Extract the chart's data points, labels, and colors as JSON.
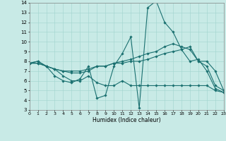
{
  "xlabel": "Humidex (Indice chaleur)",
  "xlim": [
    0,
    23
  ],
  "ylim": [
    3,
    14
  ],
  "xticks": [
    0,
    1,
    2,
    3,
    4,
    5,
    6,
    7,
    8,
    9,
    10,
    11,
    12,
    13,
    14,
    15,
    16,
    17,
    18,
    19,
    20,
    21,
    22,
    23
  ],
  "yticks": [
    3,
    4,
    5,
    6,
    7,
    8,
    9,
    10,
    11,
    12,
    13,
    14
  ],
  "bg_color": "#c8eae6",
  "line_color": "#1a7070",
  "grid_color": "#a0d4ce",
  "series1": [
    [
      0,
      7.8
    ],
    [
      1,
      8.0
    ],
    [
      2,
      7.5
    ],
    [
      3,
      6.5
    ],
    [
      4,
      6.0
    ],
    [
      5,
      5.8
    ],
    [
      6,
      6.2
    ],
    [
      7,
      7.5
    ],
    [
      8,
      4.2
    ],
    [
      9,
      4.5
    ],
    [
      10,
      7.5
    ],
    [
      11,
      8.8
    ],
    [
      12,
      10.5
    ],
    [
      13,
      3.2
    ],
    [
      14,
      13.5
    ],
    [
      15,
      14.2
    ],
    [
      16,
      12.0
    ],
    [
      17,
      11.0
    ],
    [
      18,
      9.2
    ],
    [
      19,
      8.0
    ],
    [
      20,
      8.2
    ],
    [
      21,
      7.0
    ],
    [
      22,
      5.2
    ],
    [
      23,
      4.8
    ]
  ],
  "series2": [
    [
      0,
      7.8
    ],
    [
      1,
      8.0
    ],
    [
      2,
      7.5
    ],
    [
      3,
      7.2
    ],
    [
      4,
      7.0
    ],
    [
      5,
      7.0
    ],
    [
      6,
      7.0
    ],
    [
      7,
      7.2
    ],
    [
      8,
      7.5
    ],
    [
      9,
      7.5
    ],
    [
      10,
      7.8
    ],
    [
      11,
      8.0
    ],
    [
      12,
      8.2
    ],
    [
      13,
      8.5
    ],
    [
      14,
      8.8
    ],
    [
      15,
      9.0
    ],
    [
      16,
      9.5
    ],
    [
      17,
      9.8
    ],
    [
      18,
      9.5
    ],
    [
      19,
      9.2
    ],
    [
      20,
      8.0
    ],
    [
      21,
      8.0
    ],
    [
      22,
      7.0
    ],
    [
      23,
      5.0
    ]
  ],
  "series3": [
    [
      0,
      7.8
    ],
    [
      1,
      7.8
    ],
    [
      2,
      7.5
    ],
    [
      3,
      7.2
    ],
    [
      4,
      7.0
    ],
    [
      5,
      6.8
    ],
    [
      6,
      6.8
    ],
    [
      7,
      7.0
    ],
    [
      8,
      7.5
    ],
    [
      9,
      7.5
    ],
    [
      10,
      7.8
    ],
    [
      11,
      7.8
    ],
    [
      12,
      8.0
    ],
    [
      13,
      8.0
    ],
    [
      14,
      8.2
    ],
    [
      15,
      8.5
    ],
    [
      16,
      8.8
    ],
    [
      17,
      9.0
    ],
    [
      18,
      9.2
    ],
    [
      19,
      9.5
    ],
    [
      20,
      8.0
    ],
    [
      21,
      7.5
    ],
    [
      22,
      5.5
    ],
    [
      23,
      5.0
    ]
  ],
  "series4": [
    [
      0,
      7.8
    ],
    [
      1,
      7.8
    ],
    [
      2,
      7.5
    ],
    [
      3,
      7.2
    ],
    [
      4,
      6.5
    ],
    [
      5,
      6.0
    ],
    [
      6,
      6.0
    ],
    [
      7,
      6.5
    ],
    [
      8,
      5.8
    ],
    [
      9,
      5.5
    ],
    [
      10,
      5.5
    ],
    [
      11,
      6.0
    ],
    [
      12,
      5.5
    ],
    [
      13,
      5.5
    ],
    [
      14,
      5.5
    ],
    [
      15,
      5.5
    ],
    [
      16,
      5.5
    ],
    [
      17,
      5.5
    ],
    [
      18,
      5.5
    ],
    [
      19,
      5.5
    ],
    [
      20,
      5.5
    ],
    [
      21,
      5.5
    ],
    [
      22,
      5.0
    ],
    [
      23,
      4.8
    ]
  ]
}
